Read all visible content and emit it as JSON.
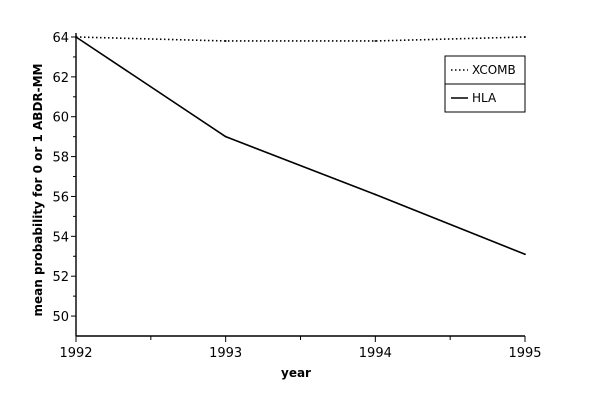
{
  "chart_data": {
    "type": "line",
    "title": "",
    "xlabel": "year",
    "ylabel": "mean probability for 0 or 1 ABDR-MM",
    "x": [
      1992,
      1993,
      1994,
      1995
    ],
    "x_ticks": [
      "1992",
      "1993",
      "1994",
      "1995"
    ],
    "xlim": [
      1992,
      1995
    ],
    "ylim": [
      49,
      64.2
    ],
    "y_ticks": [
      "50",
      "52",
      "54",
      "56",
      "58",
      "60",
      "62",
      "64"
    ],
    "grid": false,
    "legend_position": "top-right",
    "series": [
      {
        "name": "XCOMB",
        "style": "dotted",
        "values": [
          64.0,
          63.8,
          63.8,
          64.0
        ]
      },
      {
        "name": "HLA",
        "style": "solid",
        "values": [
          64.0,
          59.0,
          56.1,
          53.1
        ]
      }
    ]
  }
}
